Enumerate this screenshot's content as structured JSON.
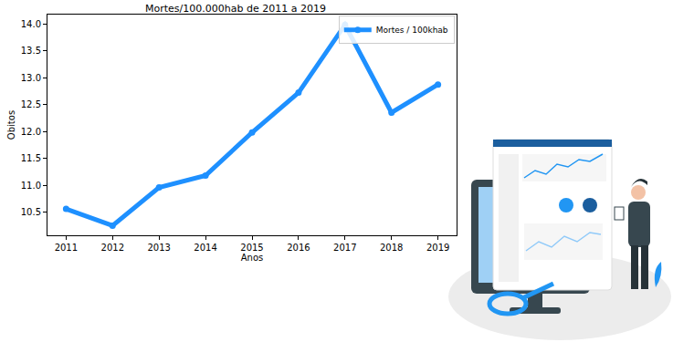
{
  "chart_data": {
    "type": "line",
    "title": "Mortes/100.000hab de 2011 a 2019",
    "x_label": "Anos",
    "y_label": "Obitos",
    "x": [
      2011,
      2012,
      2013,
      2014,
      2015,
      2016,
      2017,
      2018,
      2019
    ],
    "series": [
      {
        "name": "Mortes / 100khab",
        "color": "#1e90ff",
        "marker": "circle",
        "line_style": "solid",
        "values": [
          10.56,
          10.25,
          10.96,
          11.18,
          11.98,
          12.72,
          13.98,
          12.35,
          12.87
        ]
      }
    ],
    "xlim": [
      2010.6,
      2019.4
    ],
    "xticks": [
      2011,
      2012,
      2013,
      2014,
      2015,
      2016,
      2017,
      2018,
      2019
    ],
    "ylim": [
      10.07,
      14.17
    ],
    "yticks": [
      10.5,
      {
        "value": 11,
        "label": "11.0"
      },
      11.5,
      {
        "value": 12,
        "label": "12.0"
      },
      12.5,
      {
        "value": 13,
        "label": "13.0"
      },
      13.5,
      {
        "value": 14,
        "label": "14.0"
      }
    ],
    "grid": false,
    "legend": "upper right"
  }
}
